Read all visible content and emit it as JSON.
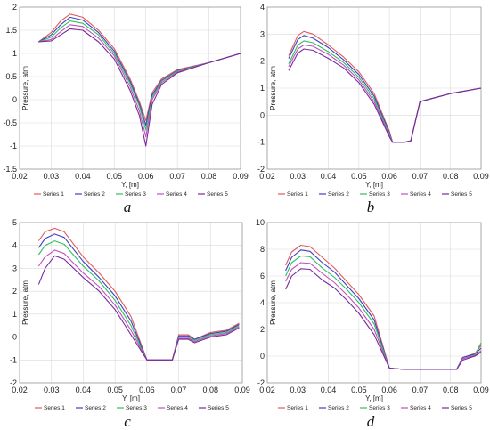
{
  "legend": [
    "Series 1",
    "Series 2",
    "Series 3",
    "Series 4",
    "Series 5"
  ],
  "series_colors": [
    "#e05a5a",
    "#4040c0",
    "#30c060",
    "#c050c0",
    "#7a2a9a"
  ],
  "chart_data": [
    {
      "type": "line",
      "label": "a",
      "xlabel": "Y, [m]",
      "ylabel": "Pressure, atm",
      "xlim": [
        0.02,
        0.09
      ],
      "ylim": [
        -1.5,
        2
      ],
      "xticks": [
        "0.02",
        "0.03",
        "0.04",
        "0.05",
        "0.06",
        "0.07",
        "0.08",
        "0.09"
      ],
      "yticks": [
        "-1.5",
        "-1",
        "-0.5",
        "0",
        "0.5",
        "1",
        "1.5",
        "2"
      ],
      "grid": true,
      "legend_position": "bottom",
      "x": [
        0.026,
        0.03,
        0.033,
        0.036,
        0.04,
        0.045,
        0.05,
        0.055,
        0.058,
        0.06,
        0.062,
        0.065,
        0.07,
        0.08,
        0.09
      ],
      "series": [
        {
          "name": "Series 1",
          "values": [
            1.25,
            1.45,
            1.7,
            1.85,
            1.78,
            1.5,
            1.1,
            0.45,
            -0.05,
            -0.45,
            0.15,
            0.45,
            0.65,
            0.8,
            1.0
          ]
        },
        {
          "name": "Series 2",
          "values": [
            1.25,
            1.4,
            1.62,
            1.78,
            1.72,
            1.45,
            1.05,
            0.4,
            -0.1,
            -0.55,
            0.1,
            0.42,
            0.63,
            0.8,
            1.0
          ]
        },
        {
          "name": "Series 3",
          "values": [
            1.25,
            1.35,
            1.55,
            1.7,
            1.65,
            1.4,
            1.0,
            0.35,
            -0.15,
            -0.65,
            0.05,
            0.4,
            0.62,
            0.8,
            1.0
          ]
        },
        {
          "name": "Series 4",
          "values": [
            1.25,
            1.3,
            1.47,
            1.62,
            1.58,
            1.33,
            0.95,
            0.28,
            -0.25,
            -0.8,
            0.0,
            0.37,
            0.6,
            0.8,
            1.0
          ]
        },
        {
          "name": "Series 5",
          "values": [
            1.25,
            1.27,
            1.4,
            1.53,
            1.5,
            1.25,
            0.88,
            0.2,
            -0.35,
            -1.0,
            -0.1,
            0.33,
            0.58,
            0.8,
            1.0
          ]
        }
      ]
    },
    {
      "type": "line",
      "label": "b",
      "xlabel": "Y, [m]",
      "ylabel": "Pressure, atm",
      "xlim": [
        0.02,
        0.09
      ],
      "ylim": [
        -2,
        4
      ],
      "xticks": [
        "0.02",
        "0.03",
        "0.04",
        "0.05",
        "0.06",
        "0.07",
        "0.08",
        "0.09"
      ],
      "yticks": [
        "-2",
        "-1",
        "0",
        "1",
        "2",
        "3",
        "4"
      ],
      "grid": true,
      "legend_position": "bottom",
      "x": [
        0.027,
        0.03,
        0.032,
        0.035,
        0.04,
        0.045,
        0.05,
        0.055,
        0.06,
        0.061,
        0.065,
        0.067,
        0.07,
        0.08,
        0.09
      ],
      "series": [
        {
          "name": "Series 1",
          "values": [
            2.2,
            2.95,
            3.1,
            3.0,
            2.6,
            2.15,
            1.6,
            0.8,
            -0.6,
            -1.0,
            -1.0,
            -0.95,
            0.5,
            0.8,
            1.0
          ]
        },
        {
          "name": "Series 2",
          "values": [
            2.1,
            2.8,
            2.95,
            2.85,
            2.5,
            2.05,
            1.5,
            0.7,
            -0.65,
            -1.0,
            -1.0,
            -0.95,
            0.5,
            0.8,
            1.0
          ]
        },
        {
          "name": "Series 3",
          "values": [
            1.9,
            2.6,
            2.75,
            2.68,
            2.35,
            1.95,
            1.4,
            0.6,
            -0.7,
            -1.0,
            -1.0,
            -0.95,
            0.5,
            0.8,
            1.0
          ]
        },
        {
          "name": "Series 4",
          "values": [
            1.8,
            2.45,
            2.6,
            2.55,
            2.25,
            1.85,
            1.3,
            0.5,
            -0.75,
            -1.0,
            -1.0,
            -0.95,
            0.5,
            0.8,
            1.0
          ]
        },
        {
          "name": "Series 5",
          "values": [
            1.65,
            2.3,
            2.45,
            2.4,
            2.1,
            1.75,
            1.2,
            0.4,
            -0.8,
            -1.0,
            -1.0,
            -0.95,
            0.5,
            0.8,
            1.0
          ]
        }
      ]
    },
    {
      "type": "line",
      "label": "c",
      "xlabel": "Y, [m]",
      "ylabel": "Pressure, atm",
      "xlim": [
        0.02,
        0.09
      ],
      "ylim": [
        -2,
        5
      ],
      "xticks": [
        "0.02",
        "0.03",
        "0.04",
        "0.05",
        "0.06",
        "0.07",
        "0.08",
        "0.09"
      ],
      "yticks": [
        "-2",
        "-1",
        "0",
        "1",
        "2",
        "3",
        "4",
        "5"
      ],
      "grid": true,
      "legend_position": "bottom",
      "x": [
        0.026,
        0.028,
        0.031,
        0.034,
        0.04,
        0.045,
        0.05,
        0.055,
        0.06,
        0.065,
        0.068,
        0.07,
        0.073,
        0.075,
        0.08,
        0.085,
        0.089
      ],
      "series": [
        {
          "name": "Series 1",
          "values": [
            4.2,
            4.6,
            4.75,
            4.6,
            3.5,
            2.8,
            2.0,
            0.9,
            -1.0,
            -1.0,
            -1.0,
            0.1,
            0.1,
            -0.1,
            0.2,
            0.3,
            0.6
          ]
        },
        {
          "name": "Series 2",
          "values": [
            3.9,
            4.3,
            4.5,
            4.35,
            3.3,
            2.6,
            1.8,
            0.7,
            -1.0,
            -1.0,
            -1.0,
            0.05,
            0.05,
            -0.1,
            0.15,
            0.25,
            0.55
          ]
        },
        {
          "name": "Series 3",
          "values": [
            3.6,
            4.0,
            4.2,
            4.05,
            3.1,
            2.45,
            1.6,
            0.5,
            -1.0,
            -1.0,
            -1.0,
            0.0,
            0.0,
            -0.15,
            0.1,
            0.2,
            0.5
          ]
        },
        {
          "name": "Series 4",
          "values": [
            3.1,
            3.5,
            3.8,
            3.65,
            2.8,
            2.2,
            1.4,
            0.3,
            -1.0,
            -1.0,
            -1.0,
            -0.05,
            -0.05,
            -0.2,
            0.05,
            0.15,
            0.45
          ]
        },
        {
          "name": "Series 5",
          "values": [
            2.3,
            3.0,
            3.55,
            3.4,
            2.6,
            2.0,
            1.2,
            0.1,
            -1.0,
            -1.0,
            -1.0,
            -0.1,
            -0.1,
            -0.25,
            0.0,
            0.1,
            0.4
          ]
        }
      ]
    },
    {
      "type": "line",
      "label": "d",
      "xlabel": "Y, [m]",
      "ylabel": "Pressure, atm",
      "xlim": [
        0.02,
        0.09
      ],
      "ylim": [
        -2,
        10
      ],
      "xticks": [
        "0.02",
        "0.03",
        "0.04",
        "0.05",
        "0.06",
        "0.07",
        "0.08",
        "0.09"
      ],
      "yticks": [
        "-2",
        "0",
        "2",
        "4",
        "6",
        "8",
        "10"
      ],
      "grid": true,
      "legend_position": "bottom",
      "x": [
        0.026,
        0.028,
        0.031,
        0.034,
        0.038,
        0.042,
        0.046,
        0.05,
        0.055,
        0.06,
        0.065,
        0.07,
        0.075,
        0.082,
        0.084,
        0.088,
        0.09
      ],
      "series": [
        {
          "name": "Series 1",
          "values": [
            6.8,
            7.8,
            8.3,
            8.2,
            7.4,
            6.6,
            5.6,
            4.6,
            3.0,
            -0.9,
            -1.0,
            -1.0,
            -1.0,
            -1.0,
            -0.1,
            0.2,
            0.8
          ]
        },
        {
          "name": "Series 2",
          "values": [
            6.4,
            7.4,
            7.95,
            7.85,
            7.0,
            6.3,
            5.3,
            4.3,
            2.7,
            -0.9,
            -1.0,
            -1.0,
            -1.0,
            -1.0,
            -0.1,
            0.15,
            0.6
          ]
        },
        {
          "name": "Series 3",
          "values": [
            6.0,
            7.0,
            7.5,
            7.45,
            6.6,
            5.9,
            5.0,
            4.0,
            2.4,
            -0.9,
            -1.0,
            -1.0,
            -1.0,
            -1.0,
            -0.2,
            0.1,
            1.0
          ]
        },
        {
          "name": "Series 4",
          "values": [
            5.6,
            6.5,
            7.0,
            6.95,
            6.2,
            5.5,
            4.6,
            3.6,
            2.0,
            -0.9,
            -1.0,
            -1.0,
            -1.0,
            -1.0,
            -0.2,
            0.05,
            0.4
          ]
        },
        {
          "name": "Series 5",
          "values": [
            5.0,
            6.0,
            6.55,
            6.5,
            5.7,
            5.1,
            4.2,
            3.2,
            1.6,
            -0.9,
            -1.0,
            -1.0,
            -1.0,
            -1.0,
            -0.3,
            0.0,
            0.3
          ]
        }
      ]
    }
  ]
}
